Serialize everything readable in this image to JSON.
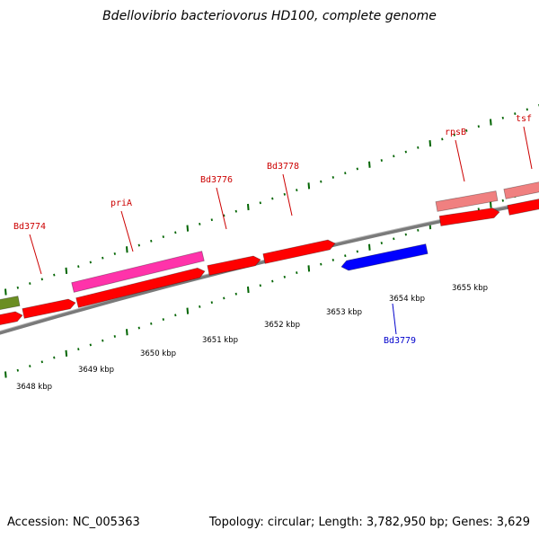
{
  "title": "Bdellovibrio bacteriovorus HD100, complete genome",
  "footer": {
    "accession": "Accession: NC_005363",
    "summary": "Topology: circular; Length: 3,782,950 bp; Genes: 3,629"
  },
  "colors": {
    "forward_gene": "#ff0000",
    "reverse_gene": "#0000ff",
    "pink_gene": "#ff33aa",
    "light_red_gene": "#f08080",
    "olive_gene": "#6b8e23",
    "backbone": "#808080",
    "ticks": "#006400",
    "forward_label": "#cc0000",
    "reverse_label": "#0000cc"
  },
  "scale_labels": [
    "3648 kbp",
    "3649 kbp",
    "3650 kbp",
    "3651 kbp",
    "3652 kbp",
    "3653 kbp",
    "3654 kbp",
    "3655 kbp"
  ],
  "gene_labels": {
    "forward": [
      "Bd3774",
      "priA",
      "Bd3776",
      "Bd3778",
      "rpsB",
      "tsf"
    ],
    "reverse": [
      "Bd3779"
    ]
  }
}
